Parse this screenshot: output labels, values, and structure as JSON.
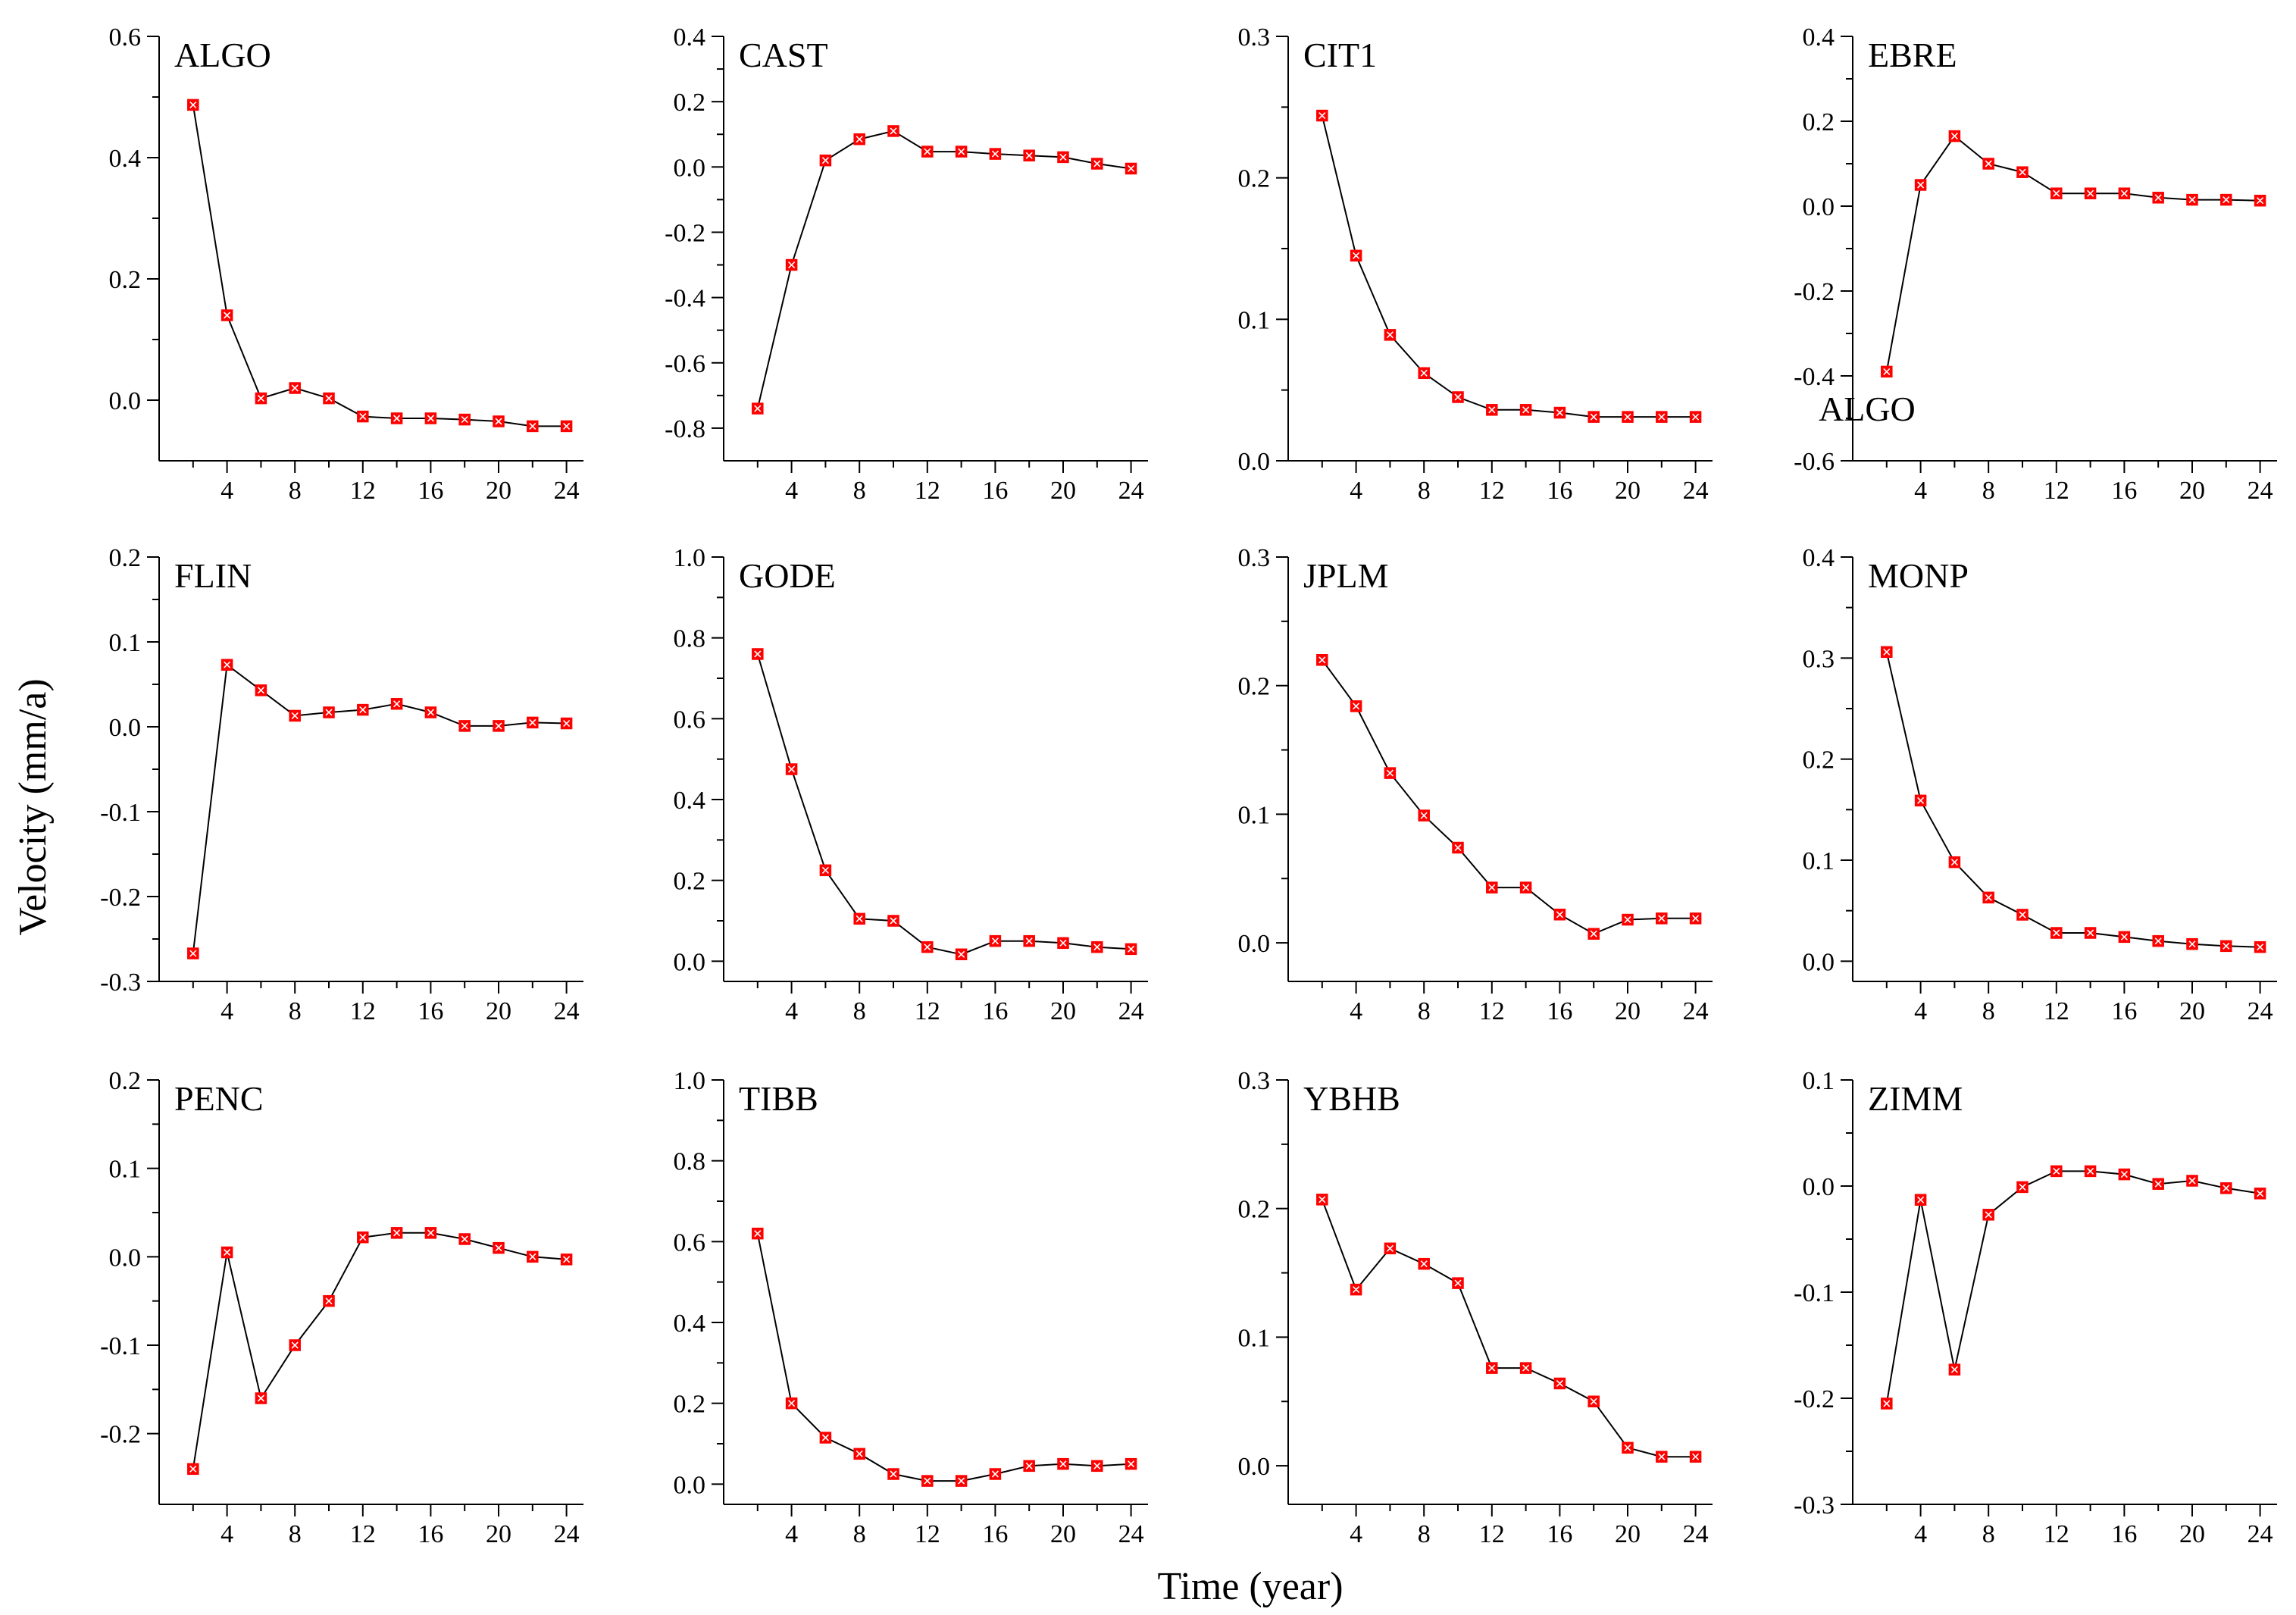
{
  "figure": {
    "ylabel": "Velocity (mm/a)",
    "xlabel": "Time  (year)",
    "stray_label": "ALGO"
  },
  "colors": {
    "line": "#000000",
    "marker_fill": "#ff0000",
    "marker_edge": "#ffffff",
    "axis": "#000000"
  },
  "chart_data": [
    {
      "type": "line",
      "title": "ALGO",
      "x": [
        2,
        4,
        6,
        8,
        10,
        12,
        14,
        16,
        18,
        20,
        22,
        24
      ],
      "y": [
        0.487,
        0.14,
        0.003,
        0.02,
        0.003,
        -0.027,
        -0.03,
        -0.03,
        -0.032,
        -0.035,
        -0.043,
        -0.043
      ],
      "xlim": [
        0,
        25
      ],
      "ylim": [
        -0.1,
        0.6
      ],
      "yticks": [
        0.0,
        0.2,
        0.4,
        0.6
      ],
      "ytick_labels": [
        "0.0",
        "0.2",
        "0.4",
        "0.6"
      ],
      "xticks": [
        4,
        8,
        12,
        16,
        20,
        24
      ],
      "xtick_labels": [
        "4",
        "8",
        "12",
        "16",
        "20",
        "24"
      ]
    },
    {
      "type": "line",
      "title": "CAST",
      "x": [
        2,
        4,
        6,
        8,
        10,
        12,
        14,
        16,
        18,
        20,
        22,
        24
      ],
      "y": [
        -0.74,
        -0.3,
        0.02,
        0.085,
        0.11,
        0.047,
        0.047,
        0.04,
        0.035,
        0.03,
        0.01,
        -0.005
      ],
      "xlim": [
        0,
        25
      ],
      "ylim": [
        -0.9,
        0.4
      ],
      "yticks": [
        -0.8,
        -0.6,
        -0.4,
        -0.2,
        0.0,
        0.2,
        0.4
      ],
      "ytick_labels": [
        "-0.8",
        "-0.6",
        "-0.4",
        "-0.2",
        "0.0",
        "0.2",
        "0.4"
      ],
      "xticks": [
        4,
        8,
        12,
        16,
        20,
        24
      ],
      "xtick_labels": [
        "4",
        "8",
        "12",
        "16",
        "20",
        "24"
      ]
    },
    {
      "type": "line",
      "title": "CIT1",
      "x": [
        2,
        4,
        6,
        8,
        10,
        12,
        14,
        16,
        18,
        20,
        22,
        24
      ],
      "y": [
        0.244,
        0.145,
        0.089,
        0.062,
        0.045,
        0.036,
        0.036,
        0.034,
        0.031,
        0.031,
        0.031,
        0.031
      ],
      "xlim": [
        0,
        25
      ],
      "ylim": [
        0.0,
        0.3
      ],
      "yticks": [
        0.0,
        0.1,
        0.2,
        0.3
      ],
      "ytick_labels": [
        "0.0",
        "0.1",
        "0.2",
        "0.3"
      ],
      "xticks": [
        4,
        8,
        12,
        16,
        20,
        24
      ],
      "xtick_labels": [
        "4",
        "8",
        "12",
        "16",
        "20",
        "24"
      ]
    },
    {
      "type": "line",
      "title": "EBRE",
      "x": [
        2,
        4,
        6,
        8,
        10,
        12,
        14,
        16,
        18,
        20,
        22,
        24
      ],
      "y": [
        -0.39,
        0.05,
        0.165,
        0.1,
        0.08,
        0.03,
        0.03,
        0.03,
        0.02,
        0.015,
        0.015,
        0.013
      ],
      "xlim": [
        0,
        25
      ],
      "ylim": [
        -0.6,
        0.4
      ],
      "yticks": [
        -0.6,
        -0.4,
        -0.2,
        0.0,
        0.2,
        0.4
      ],
      "ytick_labels": [
        "-0.6",
        "-0.4",
        "-0.2",
        "0.0",
        "0.2",
        "0.4"
      ],
      "xticks": [
        4,
        8,
        12,
        16,
        20,
        24
      ],
      "xtick_labels": [
        "4",
        "8",
        "12",
        "16",
        "20",
        "24"
      ]
    },
    {
      "type": "line",
      "title": "FLIN",
      "x": [
        2,
        4,
        6,
        8,
        10,
        12,
        14,
        16,
        18,
        20,
        22,
        24
      ],
      "y": [
        -0.267,
        0.073,
        0.043,
        0.013,
        0.017,
        0.02,
        0.027,
        0.017,
        0.001,
        0.001,
        0.005,
        0.004
      ],
      "xlim": [
        0,
        25
      ],
      "ylim": [
        -0.3,
        0.2
      ],
      "yticks": [
        -0.3,
        -0.2,
        -0.1,
        0.0,
        0.1,
        0.2
      ],
      "ytick_labels": [
        "-0.3",
        "-0.2",
        "-0.1",
        "0.0",
        "0.1",
        "0.2"
      ],
      "xticks": [
        4,
        8,
        12,
        16,
        20,
        24
      ],
      "xtick_labels": [
        "4",
        "8",
        "12",
        "16",
        "20",
        "24"
      ]
    },
    {
      "type": "line",
      "title": "GODE",
      "x": [
        2,
        4,
        6,
        8,
        10,
        12,
        14,
        16,
        18,
        20,
        22,
        24
      ],
      "y": [
        0.76,
        0.475,
        0.225,
        0.105,
        0.1,
        0.035,
        0.017,
        0.05,
        0.05,
        0.045,
        0.035,
        0.03
      ],
      "xlim": [
        0,
        25
      ],
      "ylim": [
        -0.05,
        1.0
      ],
      "yticks": [
        0.0,
        0.2,
        0.4,
        0.6,
        0.8,
        1.0
      ],
      "ytick_labels": [
        "0.0",
        "0.2",
        "0.4",
        "0.6",
        "0.8",
        "1.0"
      ],
      "xticks": [
        4,
        8,
        12,
        16,
        20,
        24
      ],
      "xtick_labels": [
        "4",
        "8",
        "12",
        "16",
        "20",
        "24"
      ]
    },
    {
      "type": "line",
      "title": "JPLM",
      "x": [
        2,
        4,
        6,
        8,
        10,
        12,
        14,
        16,
        18,
        20,
        22,
        24
      ],
      "y": [
        0.22,
        0.184,
        0.132,
        0.099,
        0.074,
        0.043,
        0.043,
        0.022,
        0.007,
        0.018,
        0.019,
        0.019
      ],
      "xlim": [
        0,
        25
      ],
      "ylim": [
        -0.03,
        0.3
      ],
      "yticks": [
        0.0,
        0.1,
        0.2,
        0.3
      ],
      "ytick_labels": [
        "0.0",
        "0.1",
        "0.2",
        "0.3"
      ],
      "xticks": [
        4,
        8,
        12,
        16,
        20,
        24
      ],
      "xtick_labels": [
        "4",
        "8",
        "12",
        "16",
        "20",
        "24"
      ]
    },
    {
      "type": "line",
      "title": "MONP",
      "x": [
        2,
        4,
        6,
        8,
        10,
        12,
        14,
        16,
        18,
        20,
        22,
        24
      ],
      "y": [
        0.306,
        0.159,
        0.098,
        0.063,
        0.046,
        0.028,
        0.028,
        0.024,
        0.02,
        0.017,
        0.015,
        0.014
      ],
      "xlim": [
        0,
        25
      ],
      "ylim": [
        -0.02,
        0.4
      ],
      "yticks": [
        0.0,
        0.1,
        0.2,
        0.3,
        0.4
      ],
      "ytick_labels": [
        "0.0",
        "0.1",
        "0.2",
        "0.3",
        "0.4"
      ],
      "xticks": [
        4,
        8,
        12,
        16,
        20,
        24
      ],
      "xtick_labels": [
        "4",
        "8",
        "12",
        "16",
        "20",
        "24"
      ]
    },
    {
      "type": "line",
      "title": "PENC",
      "x": [
        2,
        4,
        6,
        8,
        10,
        12,
        14,
        16,
        18,
        20,
        22,
        24
      ],
      "y": [
        -0.24,
        0.005,
        -0.16,
        -0.1,
        -0.05,
        0.022,
        0.027,
        0.027,
        0.02,
        0.01,
        0.0,
        -0.003
      ],
      "xlim": [
        0,
        25
      ],
      "ylim": [
        -0.28,
        0.2
      ],
      "yticks": [
        -0.2,
        -0.1,
        0.0,
        0.1,
        0.2
      ],
      "ytick_labels": [
        "-0.2",
        "-0.1",
        "0.0",
        "0.1",
        "0.2"
      ],
      "xticks": [
        4,
        8,
        12,
        16,
        20,
        24
      ],
      "xtick_labels": [
        "4",
        "8",
        "12",
        "16",
        "20",
        "24"
      ]
    },
    {
      "type": "line",
      "title": "TIBB",
      "x": [
        2,
        4,
        6,
        8,
        10,
        12,
        14,
        16,
        18,
        20,
        22,
        24
      ],
      "y": [
        0.62,
        0.2,
        0.115,
        0.075,
        0.025,
        0.008,
        0.008,
        0.025,
        0.045,
        0.05,
        0.045,
        0.05
      ],
      "xlim": [
        0,
        25
      ],
      "ylim": [
        -0.05,
        1.0
      ],
      "yticks": [
        0.0,
        0.2,
        0.4,
        0.6,
        0.8,
        1.0
      ],
      "ytick_labels": [
        "0.0",
        "0.2",
        "0.4",
        "0.6",
        "0.8",
        "1.0"
      ],
      "xticks": [
        4,
        8,
        12,
        16,
        20,
        24
      ],
      "xtick_labels": [
        "4",
        "8",
        "12",
        "16",
        "20",
        "24"
      ]
    },
    {
      "type": "line",
      "title": "YBHB",
      "x": [
        2,
        4,
        6,
        8,
        10,
        12,
        14,
        16,
        18,
        20,
        22,
        24
      ],
      "y": [
        0.207,
        0.137,
        0.169,
        0.157,
        0.142,
        0.076,
        0.076,
        0.064,
        0.05,
        0.014,
        0.007,
        0.007
      ],
      "xlim": [
        0,
        25
      ],
      "ylim": [
        -0.03,
        0.3
      ],
      "yticks": [
        0.0,
        0.1,
        0.2,
        0.3
      ],
      "ytick_labels": [
        "0.0",
        "0.1",
        "0.2",
        "0.3"
      ],
      "xticks": [
        4,
        8,
        12,
        16,
        20,
        24
      ],
      "xtick_labels": [
        "4",
        "8",
        "12",
        "16",
        "20",
        "24"
      ]
    },
    {
      "type": "line",
      "title": "ZIMM",
      "x": [
        2,
        4,
        6,
        8,
        10,
        12,
        14,
        16,
        18,
        20,
        22,
        24
      ],
      "y": [
        -0.205,
        -0.013,
        -0.173,
        -0.027,
        -0.001,
        0.014,
        0.014,
        0.011,
        0.002,
        0.005,
        -0.002,
        -0.007
      ],
      "xlim": [
        0,
        25
      ],
      "ylim": [
        -0.3,
        0.1
      ],
      "yticks": [
        -0.3,
        -0.2,
        -0.1,
        0.0,
        0.1
      ],
      "ytick_labels": [
        "-0.3",
        "-0.2",
        "-0.1",
        "0.0",
        "0.1"
      ],
      "xticks": [
        4,
        8,
        12,
        16,
        20,
        24
      ],
      "xtick_labels": [
        "4",
        "8",
        "12",
        "16",
        "20",
        "24"
      ]
    }
  ]
}
